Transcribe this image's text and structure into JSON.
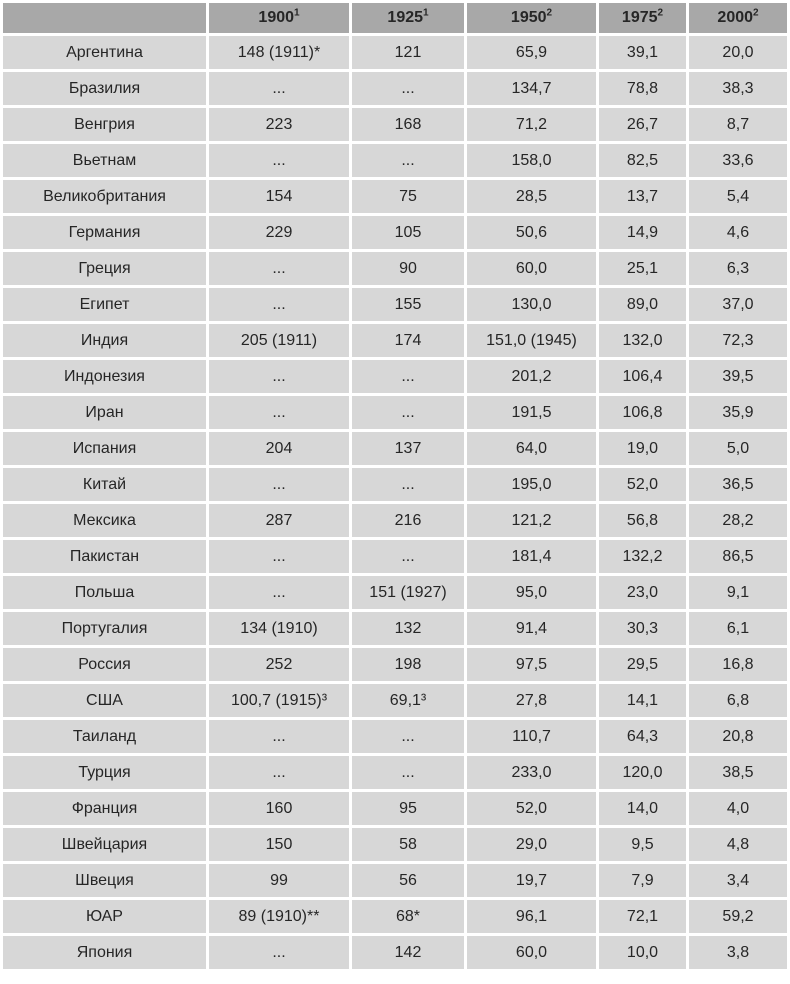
{
  "chart_data": {
    "type": "table",
    "columns": [
      {
        "label": "",
        "sup": ""
      },
      {
        "label": "1900",
        "sup": "1"
      },
      {
        "label": "1925",
        "sup": "1"
      },
      {
        "label": "1950",
        "sup": "2"
      },
      {
        "label": "1975",
        "sup": "2"
      },
      {
        "label": "2000",
        "sup": "2"
      }
    ],
    "rows": [
      {
        "country": "Аргентина",
        "values": [
          "148 (1911)*",
          "121",
          "65,9",
          "39,1",
          "20,0"
        ]
      },
      {
        "country": "Бразилия",
        "values": [
          "...",
          "...",
          "134,7",
          "78,8",
          "38,3"
        ]
      },
      {
        "country": "Венгрия",
        "values": [
          "223",
          "168",
          "71,2",
          "26,7",
          "8,7"
        ]
      },
      {
        "country": "Вьетнам",
        "values": [
          "...",
          "...",
          "158,0",
          "82,5",
          "33,6"
        ]
      },
      {
        "country": "Великобритания",
        "values": [
          "154",
          "75",
          "28,5",
          "13,7",
          "5,4"
        ]
      },
      {
        "country": "Германия",
        "values": [
          "229",
          "105",
          "50,6",
          "14,9",
          "4,6"
        ]
      },
      {
        "country": "Греция",
        "values": [
          "...",
          "90",
          "60,0",
          "25,1",
          "6,3"
        ]
      },
      {
        "country": "Египет",
        "values": [
          "...",
          "155",
          "130,0",
          "89,0",
          "37,0"
        ]
      },
      {
        "country": "Индия",
        "values": [
          "205 (1911)",
          "174",
          "151,0 (1945)",
          "132,0",
          "72,3"
        ]
      },
      {
        "country": "Индонезия",
        "values": [
          "...",
          "...",
          "201,2",
          "106,4",
          "39,5"
        ]
      },
      {
        "country": "Иран",
        "values": [
          "...",
          "...",
          "191,5",
          "106,8",
          "35,9"
        ]
      },
      {
        "country": "Испания",
        "values": [
          "204",
          "137",
          "64,0",
          "19,0",
          "5,0"
        ]
      },
      {
        "country": "Китай",
        "values": [
          "...",
          "...",
          "195,0",
          "52,0",
          "36,5"
        ]
      },
      {
        "country": "Мексика",
        "values": [
          "287",
          "216",
          "121,2",
          "56,8",
          "28,2"
        ]
      },
      {
        "country": "Пакистан",
        "values": [
          "...",
          "...",
          "181,4",
          "132,2",
          "86,5"
        ]
      },
      {
        "country": "Польша",
        "values": [
          "...",
          "151 (1927)",
          "95,0",
          "23,0",
          "9,1"
        ]
      },
      {
        "country": "Португалия",
        "values": [
          "134 (1910)",
          "132",
          "91,4",
          "30,3",
          "6,1"
        ]
      },
      {
        "country": "Россия",
        "values": [
          "252",
          "198",
          "97,5",
          "29,5",
          "16,8"
        ]
      },
      {
        "country": "США",
        "values": [
          "100,7 (1915)³",
          "69,1³",
          "27,8",
          "14,1",
          "6,8"
        ]
      },
      {
        "country": "Таиланд",
        "values": [
          "...",
          "...",
          "110,7",
          "64,3",
          "20,8"
        ]
      },
      {
        "country": "Турция",
        "values": [
          "...",
          "...",
          "233,0",
          "120,0",
          "38,5"
        ]
      },
      {
        "country": "Франция",
        "values": [
          "160",
          "95",
          "52,0",
          "14,0",
          "4,0"
        ]
      },
      {
        "country": "Швейцария",
        "values": [
          "150",
          "58",
          "29,0",
          "9,5",
          "4,8"
        ]
      },
      {
        "country": "Швеция",
        "values": [
          "99",
          "56",
          "19,7",
          "7,9",
          "3,4"
        ]
      },
      {
        "country": "ЮАР",
        "values": [
          "89 (1910)**",
          "68*",
          "96,1",
          "72,1",
          "59,2"
        ]
      },
      {
        "country": "Япония",
        "values": [
          "...",
          "142",
          "60,0",
          "10,0",
          "3,8"
        ]
      }
    ]
  },
  "colors": {
    "header_bg": "#a8a8a8",
    "cell_bg": "#d7d7d7",
    "gap": "#ffffff",
    "text": "#262626"
  }
}
